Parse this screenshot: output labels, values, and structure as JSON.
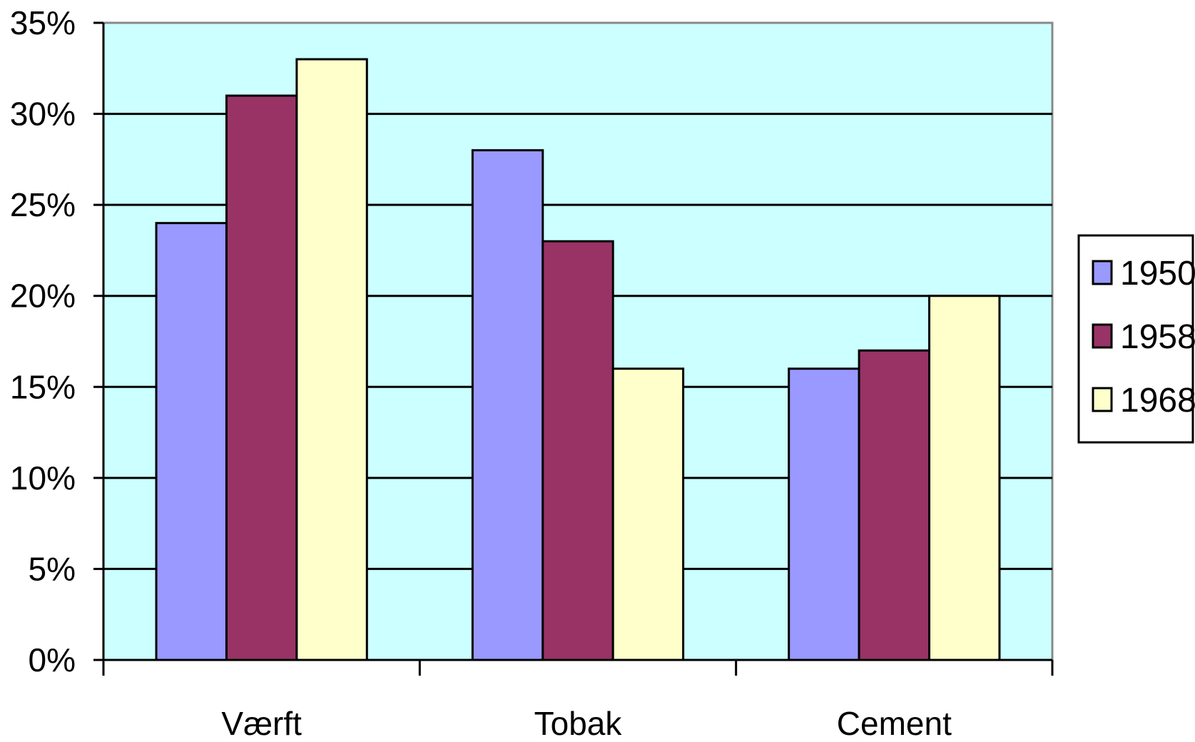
{
  "chart_data": {
    "type": "bar",
    "title": "",
    "xlabel": "",
    "ylabel": "",
    "categories": [
      "Værft",
      "Tobak",
      "Cement"
    ],
    "series": [
      {
        "name": "1950",
        "values": [
          0.24,
          0.28,
          0.16
        ],
        "color": "#9999ff"
      },
      {
        "name": "1958",
        "values": [
          0.31,
          0.23,
          0.17
        ],
        "color": "#993366"
      },
      {
        "name": "1968",
        "values": [
          0.33,
          0.16,
          0.2
        ],
        "color": "#ffffcc"
      }
    ],
    "ylim": [
      0,
      0.35
    ],
    "y_ticks": [
      {
        "value": 0,
        "label": "0%"
      },
      {
        "value": 0.05,
        "label": "5%"
      },
      {
        "value": 0.1,
        "label": "10%"
      },
      {
        "value": 0.15,
        "label": "15%"
      },
      {
        "value": 0.2,
        "label": "20%"
      },
      {
        "value": 0.25,
        "label": "25%"
      },
      {
        "value": 0.3,
        "label": "30%"
      },
      {
        "value": 0.35,
        "label": "35%"
      }
    ],
    "grid": true,
    "legend_position": "right",
    "plot_background": "#ccffff",
    "gridline_color": "#000000"
  }
}
